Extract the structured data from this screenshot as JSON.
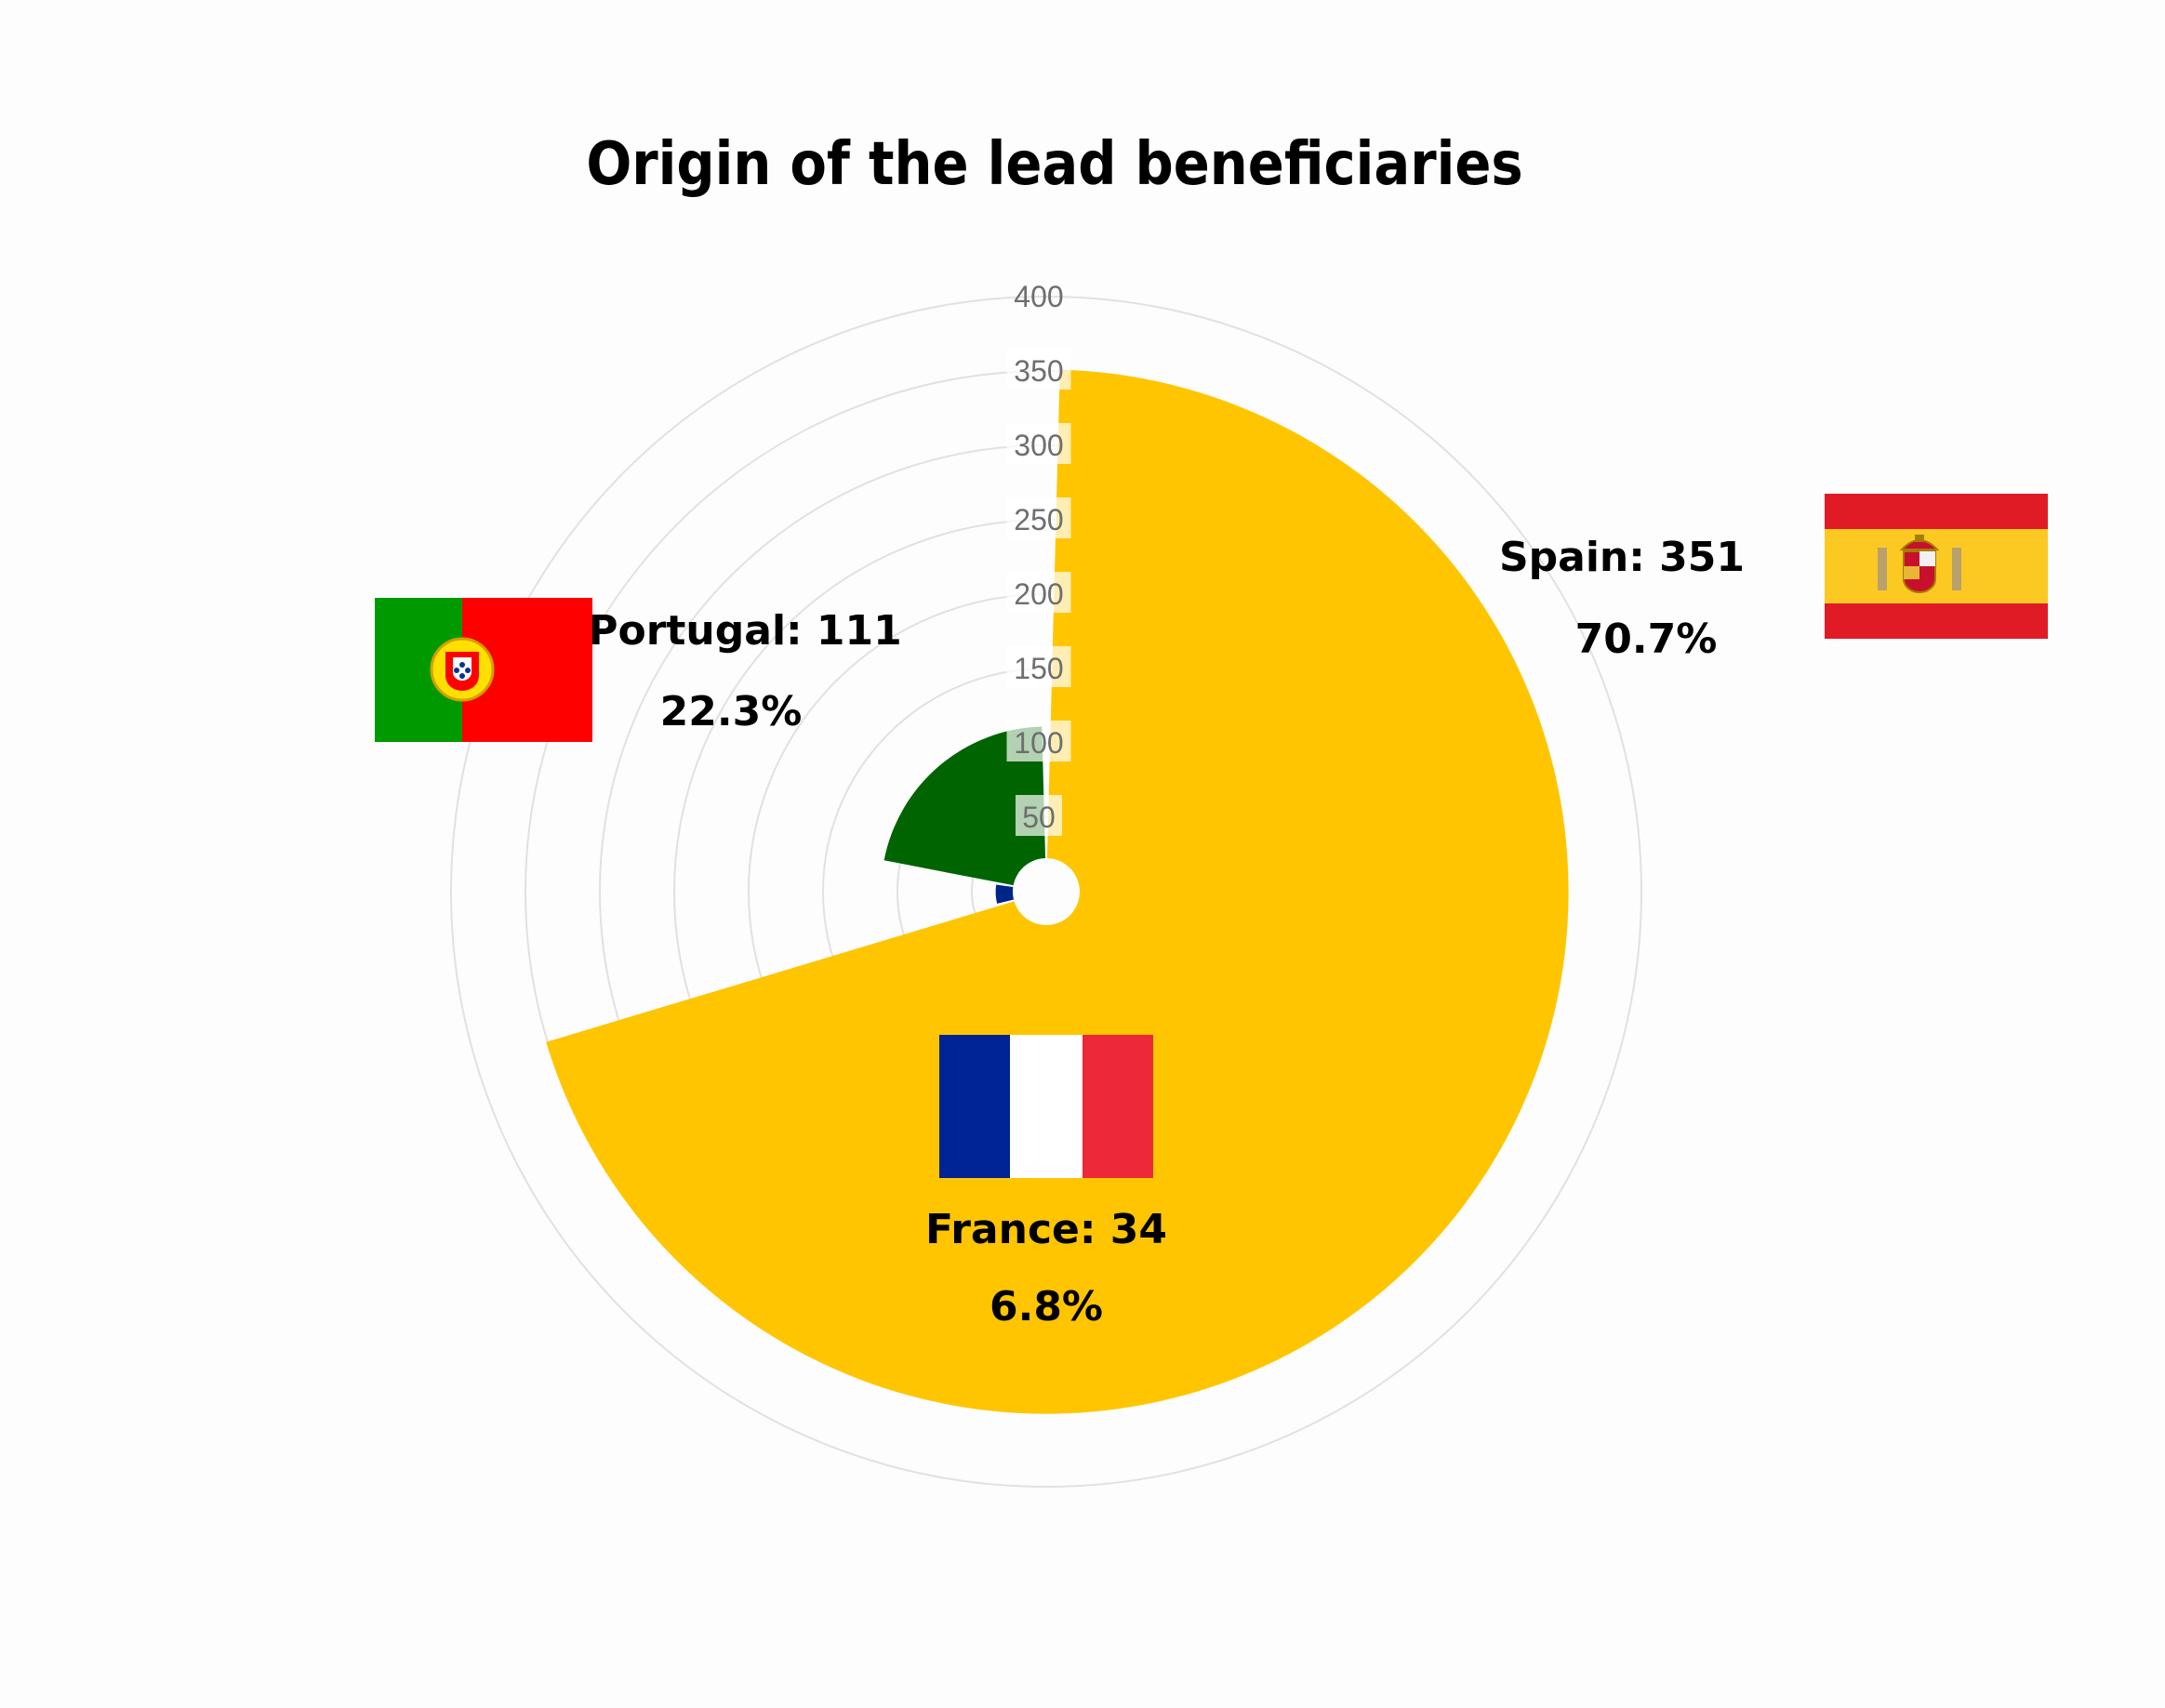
{
  "chart_data": {
    "type": "polar-bar",
    "title": "Origin of the lead beneficiaries",
    "radial_ticks": [
      "50",
      "100",
      "150",
      "200",
      "250",
      "300",
      "350",
      "400"
    ],
    "radial_max": 400,
    "slices": [
      {
        "name": "Spain",
        "value": 351,
        "percent": "70.7%",
        "color": "#ffc500",
        "label": "Spain: 351",
        "flag": "spain-flag-icon"
      },
      {
        "name": "France",
        "value": 34,
        "percent": "6.8%",
        "color": "#002589",
        "label": "France: 34",
        "flag": "france-flag-icon"
      },
      {
        "name": "Portugal",
        "value": 111,
        "percent": "22.3%",
        "color": "#006400",
        "label": "Portugal: 111",
        "flag": "portugal-flag-icon"
      }
    ]
  },
  "colors": {
    "spain_red": "#e11b25",
    "spain_yellow": "#fcc923",
    "france_blue": "#002395",
    "france_red": "#ed2939",
    "portugal_green": "#009a00",
    "portugal_red": "#ff0000"
  }
}
